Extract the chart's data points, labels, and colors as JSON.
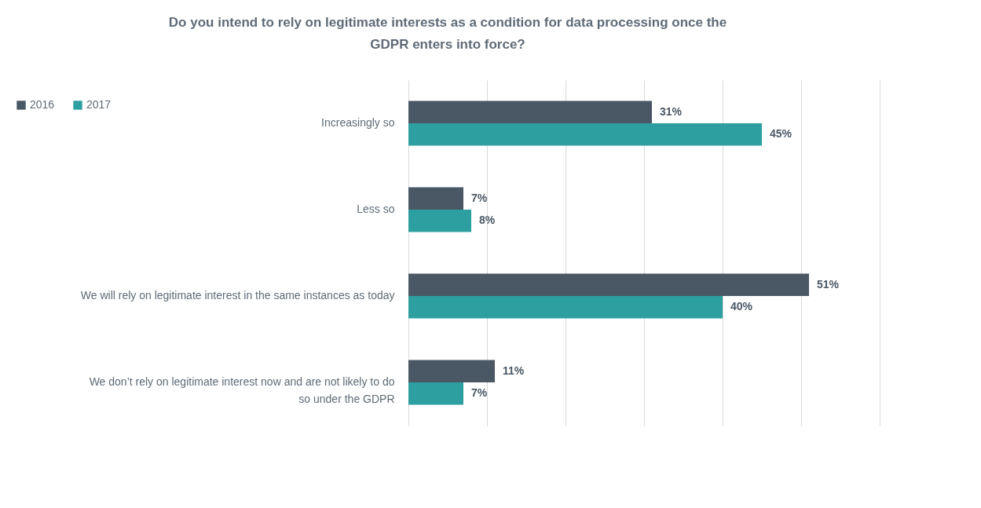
{
  "chart_data": {
    "type": "bar",
    "orientation": "horizontal",
    "title": "Do you intend to rely on legitimate interests as a condition for data processing once the GDPR enters into force?",
    "categories": [
      "Increasingly so",
      "Less so",
      "We will rely on legitimate interest in the same instances as today",
      "We don’t rely on legitimate interest now and are not likely to do so under the GDPR"
    ],
    "series": [
      {
        "name": "2016",
        "color": "#4a5866",
        "values": [
          31,
          7,
          51,
          11
        ],
        "value_labels": [
          "31%",
          "7%",
          "51%",
          "11%"
        ]
      },
      {
        "name": "2017",
        "color": "#2e9fa0",
        "values": [
          45,
          8,
          40,
          7
        ],
        "value_labels": [
          "45%",
          "8%",
          "40%",
          "7%"
        ]
      }
    ],
    "xlim": [
      0,
      60
    ],
    "xticks": [
      {
        "value": 0,
        "label": null
      },
      {
        "value": 10,
        "label": null
      },
      {
        "value": 20,
        "label": null
      },
      {
        "value": 30,
        "label": null
      },
      {
        "value": 40,
        "label": null
      },
      {
        "value": 50,
        "label": null
      },
      {
        "value": 60,
        "label": null
      }
    ],
    "grid": "x",
    "tick_labels": "y",
    "legend": "top left"
  }
}
